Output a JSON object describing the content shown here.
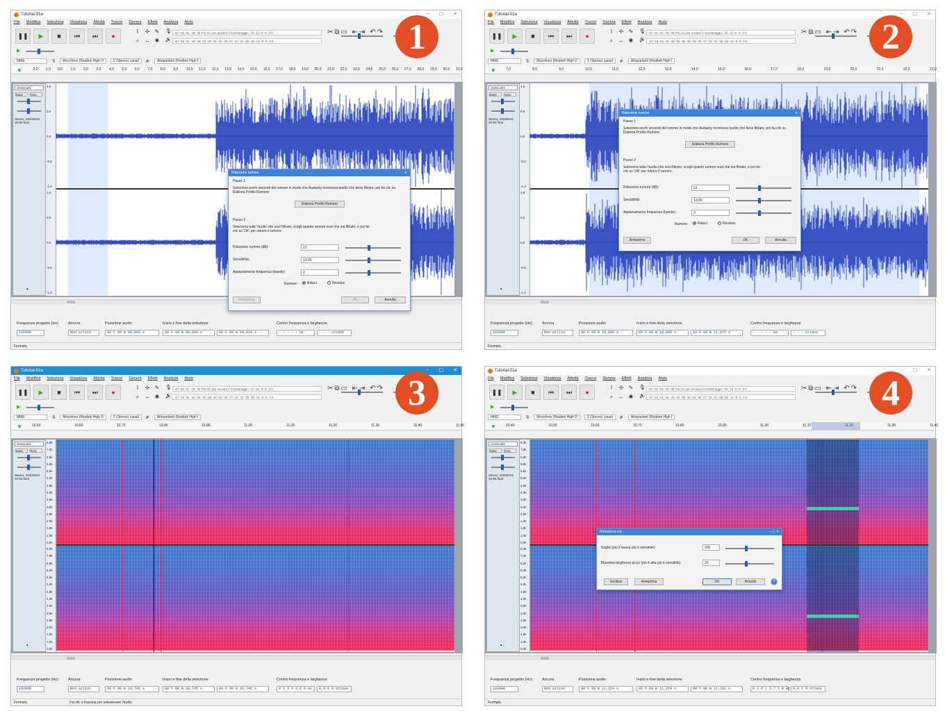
{
  "panels": [
    {
      "badge": "1",
      "window_title": "Tutorial-01a",
      "menu": [
        "File",
        "Modifica",
        "Seleziona",
        "Visualizza",
        "Attività",
        "Tracce",
        "Genera",
        "Effetti",
        "Analizza",
        "Aiuto"
      ],
      "meter_top": "-57 -54 -51 -48 -45  Fai clic per avviare il monitoraggio  -15 -12 -9 -6 -3 0",
      "meter_bottom": "-57 -54 -51 -48 -45 -42 -39 -36 -33 -30 -27 -24 -21 -18 -15 -12 -9 -6 -3 0",
      "host": "MME",
      "mic": "Microfono (Realtek High D",
      "channels": "2 (Stereo) canali",
      "speaker": "Altoparlanti (Realtek High I",
      "ruler": [
        "-2,0",
        "-1,0",
        "0,0",
        "1,0",
        "2,0",
        "3,0",
        "4,0",
        "5,0",
        "6,0",
        "7,0",
        "8,0",
        "9,0",
        "10,0",
        "11,0",
        "12,0",
        "13,0",
        "14,0",
        "15,0",
        "16,0",
        "17,0",
        "18,0",
        "19,0",
        "20,0",
        "21,0",
        "22,0",
        "23,0",
        "24,0",
        "25,0",
        "26,0",
        "27,0",
        "28,0",
        "29,0",
        "30,0",
        "31,0"
      ],
      "track_name": "classica01",
      "track_info": "Stereo, 192000Hz 32-bit float",
      "scale": [
        "1,0",
        "0,5",
        "0,0",
        "-0,5",
        "-1,0",
        "1,0",
        "0,5",
        "0,0",
        "-0,5",
        "-1,0"
      ],
      "project_rate_label": "Frequenza progetto (Hz)",
      "project_rate": "192000",
      "snap_label": "Ancora",
      "snap_value": "Non attivo",
      "audio_pos_label": "Posizione audio",
      "audio_pos": "00 h 00 m 00,842 s",
      "sel_label": "Inizio e fine della selezione",
      "sel_start": "00 h 00 m 00,842 s",
      "sel_end": "00 h 00 m 04,014 s",
      "freq_label": "Centro frequenza e larghezza",
      "freq_center": "- - - - - Hz",
      "freq_width": "- - - ottave",
      "status": "Fermato.",
      "status_hint": ""
    },
    {
      "badge": "2",
      "window_title": "Tutorial-01a",
      "menu": [
        "File",
        "Modifica",
        "Seleziona",
        "Visualizza",
        "Attività",
        "Tracce",
        "Genera",
        "Effetti",
        "Analizza",
        "Aiuto"
      ],
      "meter_top": "-57 -54 -51 -48 -45  Fai clic per avviare il monitoraggio  -15 -12 -9 -6 -3 0",
      "meter_bottom": "-57 -54 -51 -48 -45 -42 -39 -36 -33 -30 -27 -24 -21 -18 -15 -12 -9 -6 -3 0",
      "host": "MME",
      "mic": "Microfono (Realtek High D",
      "channels": "2 (Stereo) canali",
      "speaker": "Altoparlanti (Realtek High I",
      "ruler": [
        "7,0",
        "8,0",
        "9,0",
        "10,0",
        "11,0",
        "12,0",
        "13,0",
        "14,0",
        "15,0",
        "16,0",
        "17,0",
        "18,0",
        "19,0",
        "20,0",
        "21,0",
        "22,0",
        "23,0"
      ],
      "track_name": "classica01",
      "track_info": "Stereo, 192000Hz 32-bit float",
      "scale": [
        "1,0",
        "0,5",
        "0,0",
        "-0,5",
        "-1,0",
        "1,0",
        "0,5",
        "0,0",
        "-0,5",
        "-1,0"
      ],
      "project_rate_label": "Frequenza progetto (Hz)",
      "project_rate": "192000",
      "snap_label": "Ancora",
      "snap_value": "Non attivo",
      "audio_pos_label": "Posizione audio",
      "audio_pos": "00 h 00 m 10,008 s",
      "sel_label": "Inizio e fine della selezione",
      "sel_start": "00 h 00 m 10,008 s",
      "sel_end": "00 h 00 m 21,075 s",
      "freq_label": "Centro frequenza e larghezza",
      "freq_center": "- - - - - Hz",
      "freq_width": "- - - ottave",
      "status": "Fermato.",
      "status_hint": ""
    },
    {
      "badge": "3",
      "window_title": "Tutorial-01a",
      "menu": [
        "File",
        "Modifica",
        "Seleziona",
        "Visualizza",
        "Attività",
        "Tracce",
        "Genera",
        "Effetti",
        "Analizza",
        "Aiuto"
      ],
      "meter_top": "-57 -54 -51 -48 -45  Fai clic per avviare il monitoraggio  -15 -12 -9 -6 -3 0",
      "meter_bottom": "-57 -54 -51 -48 -45 -42 -39 -36 -33 -30 -27 -24 -21 -18 -15 -12 -9 -6 -3 0",
      "host": "MME",
      "mic": "Microfono (Realtek High D",
      "channels": "2 (Stereo) canali",
      "speaker": "Altoparlanti (Realtek High I",
      "ruler": [
        "10,50",
        "10,60",
        "10,70",
        "10,80",
        "10,90",
        "11,00",
        "11,10",
        "11,20",
        "11,30",
        "11,40",
        "11,50"
      ],
      "track_name": "classica01",
      "track_info": "Stereo, 192000Hz 32-bit float",
      "scale": [
        "8,0k",
        "7,0k",
        "6,5k",
        "6,0k",
        "5,5k",
        "5,0k",
        "4,5k",
        "4,0k",
        "3,5k",
        "3,0k",
        "2,5k",
        "2,0k",
        "1,5k",
        "1,0k",
        "0,0k",
        "8,0k",
        "7,0k",
        "6,5k",
        "6,0k",
        "5,5k",
        "5,0k",
        "4,5k",
        "4,0k",
        "3,5k",
        "3,0k",
        "2,5k",
        "2,0k",
        "1,5k",
        "1,0k",
        "0,0k"
      ],
      "project_rate_label": "Frequenza progetto (Hz)",
      "project_rate": "192000",
      "snap_label": "Ancora",
      "snap_value": "Non attivo",
      "audio_pos_label": "Posizione audio",
      "audio_pos": "00 h 00 m 10,745 s",
      "sel_label": "Inizio e fine della selezione",
      "sel_start": "00 h 00 m 10,745 s",
      "sel_end": "00 h 00 m 10,745 s",
      "freq_label": "Centro frequenza e larghezza",
      "freq_center": "0 1 3 4 6,0 0 Hz",
      "freq_width": "0,0 0 0 ottave",
      "status": "Fermato.",
      "status_hint": "Fai clic e trascina per selezionare l'audio"
    },
    {
      "badge": "4",
      "window_title": "Tutorial-01a",
      "menu": [
        "File",
        "Modifica",
        "Seleziona",
        "Visualizza",
        "Attività",
        "Tracce",
        "Genera",
        "Effetti",
        "Analizza",
        "Aiuto"
      ],
      "meter_top": "-57 -54 -51 -48 -45  Fai clic per avviare il monitoraggio  -15 -12 -9 -6 -3 0",
      "meter_bottom": "-57 -54 -51 -48 -45 -42 -39 -36 -33 -30 -27 -24 -21 -18 -15 -12 -9 -6 -3 0",
      "host": "MME",
      "mic": "Microfono (Realtek High D",
      "channels": "2 (Stereo) canali",
      "speaker": "Altoparlanti (Realtek High I",
      "ruler": [
        "10,40",
        "10,50",
        "10,60",
        "10,70",
        "10,80",
        "10,90",
        "11,00",
        "11,10",
        "11,20",
        "11,30",
        "11,40"
      ],
      "track_name": "classica01",
      "track_info": "Stereo, 192000Hz 32-bit float",
      "scale": [
        "8,0k",
        "7,0k",
        "6,5k",
        "6,0k",
        "5,5k",
        "5,0k",
        "4,5k",
        "4,0k",
        "3,5k",
        "3,0k",
        "2,5k",
        "2,0k",
        "1,5k",
        "1,0k",
        "0,0k",
        "8,0k",
        "7,0k",
        "6,5k",
        "6,0k",
        "5,5k",
        "5,0k",
        "4,5k",
        "4,0k",
        "3,5k",
        "3,0k",
        "2,5k",
        "2,0k",
        "1,5k",
        "1,0k",
        "0,0k"
      ],
      "project_rate_label": "Frequenza progetto (Hz)",
      "project_rate": "192000",
      "snap_label": "Ancora",
      "snap_value": "Non attivo",
      "audio_pos_label": "Posizione audio",
      "audio_pos": "00 h 00 m 11,154 s",
      "sel_label": "Inizio e fine della selezione",
      "sel_start": "00 h 00 m 11,154 s",
      "sel_end": "00 h 00 m 11,262 s",
      "freq_label": "Centro frequenza e larghezza",
      "freq_center": "0 2 6 1 3,7 7 9 Hz",
      "freq_width": "0,0 1 9 ottave",
      "status": "Fermato.",
      "status_hint": ""
    }
  ],
  "noise_dialog": {
    "title": "Riduzione rumore",
    "step1": "Passo 1",
    "step1_text": "Seleziona pochi secondi del rumore in modo che Audacity riconosca quello che deve filtrare, poi fai clic su Elabora Profilo Rumore:",
    "profile_button": "Elabora Profilo Rumore",
    "step2": "Passo 2",
    "step2_text": "Seleziona tutto l'audio che vuoi filtrare, scegli quanto rumore vuoi che sia filtrato, e poi fai clic su 'OK' per ridurre il rumore.",
    "reduction_label": "Riduzione rumore (dB):",
    "reduction_value": "21",
    "sensitivity_label": "Sensibilità:",
    "sensitivity_value": "13,00",
    "smoothing_label": "Appianamento frequenza (bande):",
    "smoothing_value": "3",
    "noise_label": "Rumore:",
    "reduce_option": "Riduci",
    "residual_option": "Residuo",
    "preview_button": "Anteprima",
    "ok_button": "OK",
    "cancel_button": "Annulla"
  },
  "click_dialog": {
    "title": "Rimozione clic",
    "threshold_label": "Soglia (più è bassa più è sensibile):",
    "threshold_value": "200",
    "width_label": "Massima larghezza picco (più è alta più è sensibile):",
    "width_value": "20",
    "manage_button": "Gestisci",
    "preview_button": "Anteprima",
    "ok_button": "OK",
    "cancel_button": "Annulla",
    "help_button": "?"
  },
  "colors": {
    "badge": "#e34e25",
    "waveform": "#3a54c4",
    "selection": "#c8dcff",
    "title_active": "#1a8fd6"
  }
}
